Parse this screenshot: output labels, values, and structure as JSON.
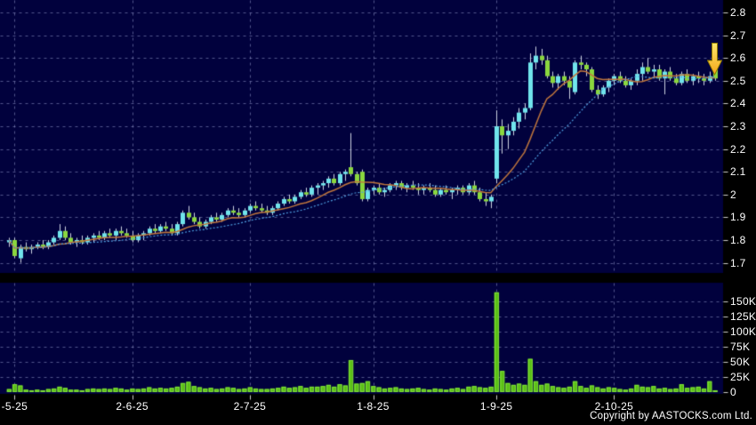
{
  "footer": {
    "copyright": "Copyright by AASTOCKS.com Ltd."
  },
  "chart_data": {
    "type": "candlestick",
    "panes": [
      "price",
      "volume"
    ],
    "grid": true,
    "legend": "none",
    "price_axis": {
      "side": "right",
      "ylim": [
        1.7,
        2.8
      ],
      "tick_labels": [
        "2.8",
        "2.7",
        "2.6",
        "2.5",
        "2.4",
        "2.3",
        "2.2",
        "2.1",
        "2",
        "1.9",
        "1.8",
        "1.7"
      ]
    },
    "volume_axis": {
      "side": "right",
      "ylim_k": [
        0,
        150
      ],
      "tick_labels": [
        "150K",
        "125K",
        "100K",
        "75K",
        "50K",
        "25K",
        "0"
      ]
    },
    "x_axis": {
      "ticks": [
        {
          "label": "-5-25",
          "bar": 1
        },
        {
          "label": "2-6-25",
          "bar": 22
        },
        {
          "label": "2-7-25",
          "bar": 43
        },
        {
          "label": "1-8-25",
          "bar": 65
        },
        {
          "label": "1-9-25",
          "bar": 87
        },
        {
          "label": "2-10-25",
          "bar": 108
        }
      ]
    },
    "moving_averages": [
      {
        "period": 10,
        "color": "#c0763c",
        "style": "solid"
      },
      {
        "period": 20,
        "color": "#4f9fe0",
        "style": "dotted"
      }
    ],
    "colors": {
      "plot_bg": "#01013d",
      "outer_bg": "#000000",
      "gridline": "rgba(150,155,205,0.55)",
      "axis_text": "#ffffff",
      "tick_mark": "#cccccc",
      "up_candle": "#70e4ec",
      "down_candle": "#8ad73e",
      "wick": "#ccd2e0",
      "volume_fill": "#5abf16",
      "volume_stroke": "#82e43a"
    },
    "annotation_arrow": {
      "shape": "down-arrow",
      "bar": 126,
      "fill_top": "#ffe76a",
      "fill_bottom": "#f2a71b",
      "stroke": "#8f7a00"
    },
    "series": {
      "ohlcv_legend": [
        "open",
        "high",
        "low",
        "close",
        "volume_k"
      ],
      "ohlcv": [
        [
          1.79,
          1.81,
          1.77,
          1.8,
          5
        ],
        [
          1.8,
          1.81,
          1.72,
          1.73,
          13
        ],
        [
          1.72,
          1.78,
          1.7,
          1.77,
          11
        ],
        [
          1.77,
          1.79,
          1.75,
          1.76,
          4
        ],
        [
          1.76,
          1.78,
          1.74,
          1.77,
          3
        ],
        [
          1.77,
          1.79,
          1.76,
          1.78,
          4
        ],
        [
          1.78,
          1.8,
          1.76,
          1.77,
          3
        ],
        [
          1.77,
          1.8,
          1.76,
          1.79,
          5
        ],
        [
          1.79,
          1.82,
          1.78,
          1.81,
          6
        ],
        [
          1.81,
          1.87,
          1.8,
          1.84,
          9
        ],
        [
          1.84,
          1.86,
          1.8,
          1.81,
          7
        ],
        [
          1.81,
          1.83,
          1.78,
          1.79,
          4
        ],
        [
          1.79,
          1.81,
          1.77,
          1.8,
          4
        ],
        [
          1.8,
          1.82,
          1.78,
          1.79,
          3
        ],
        [
          1.79,
          1.82,
          1.78,
          1.81,
          5
        ],
        [
          1.81,
          1.83,
          1.79,
          1.82,
          6
        ],
        [
          1.82,
          1.84,
          1.8,
          1.81,
          5
        ],
        [
          1.81,
          1.84,
          1.8,
          1.83,
          6
        ],
        [
          1.83,
          1.85,
          1.81,
          1.82,
          5
        ],
        [
          1.82,
          1.85,
          1.8,
          1.84,
          7
        ],
        [
          1.84,
          1.86,
          1.82,
          1.83,
          6
        ],
        [
          1.83,
          1.85,
          1.81,
          1.82,
          4
        ],
        [
          1.82,
          1.84,
          1.79,
          1.8,
          6
        ],
        [
          1.8,
          1.83,
          1.79,
          1.82,
          5
        ],
        [
          1.82,
          1.84,
          1.8,
          1.83,
          6
        ],
        [
          1.83,
          1.86,
          1.82,
          1.85,
          8
        ],
        [
          1.85,
          1.87,
          1.83,
          1.84,
          6
        ],
        [
          1.84,
          1.87,
          1.83,
          1.86,
          7
        ],
        [
          1.86,
          1.88,
          1.84,
          1.85,
          6
        ],
        [
          1.85,
          1.87,
          1.82,
          1.83,
          7
        ],
        [
          1.83,
          1.88,
          1.82,
          1.87,
          9
        ],
        [
          1.87,
          1.93,
          1.86,
          1.92,
          15
        ],
        [
          1.92,
          1.95,
          1.89,
          1.9,
          17
        ],
        [
          1.9,
          1.92,
          1.87,
          1.88,
          10
        ],
        [
          1.88,
          1.9,
          1.85,
          1.86,
          8
        ],
        [
          1.86,
          1.89,
          1.85,
          1.88,
          6
        ],
        [
          1.88,
          1.91,
          1.87,
          1.9,
          7
        ],
        [
          1.9,
          1.92,
          1.88,
          1.89,
          5
        ],
        [
          1.89,
          1.92,
          1.88,
          1.91,
          6
        ],
        [
          1.91,
          1.94,
          1.9,
          1.93,
          8
        ],
        [
          1.93,
          1.95,
          1.91,
          1.92,
          7
        ],
        [
          1.92,
          1.94,
          1.9,
          1.91,
          5
        ],
        [
          1.91,
          1.94,
          1.9,
          1.93,
          6
        ],
        [
          1.93,
          1.96,
          1.92,
          1.95,
          8
        ],
        [
          1.95,
          1.97,
          1.93,
          1.94,
          6
        ],
        [
          1.94,
          1.96,
          1.92,
          1.93,
          5
        ],
        [
          1.93,
          1.95,
          1.91,
          1.92,
          5
        ],
        [
          1.92,
          1.95,
          1.91,
          1.94,
          6
        ],
        [
          1.94,
          1.97,
          1.93,
          1.96,
          7
        ],
        [
          1.96,
          1.99,
          1.95,
          1.98,
          9
        ],
        [
          1.98,
          2.0,
          1.96,
          1.97,
          7
        ],
        [
          1.97,
          2.0,
          1.96,
          1.99,
          8
        ],
        [
          1.99,
          2.02,
          1.98,
          2.01,
          10
        ],
        [
          2.01,
          2.03,
          1.99,
          2.0,
          7
        ],
        [
          2.0,
          2.04,
          1.99,
          2.03,
          9
        ],
        [
          2.03,
          2.05,
          2.0,
          2.04,
          9
        ],
        [
          2.04,
          2.06,
          2.02,
          2.05,
          10
        ],
        [
          2.05,
          2.08,
          2.03,
          2.07,
          12
        ],
        [
          2.07,
          2.09,
          2.04,
          2.05,
          9
        ],
        [
          2.05,
          2.1,
          2.04,
          2.09,
          13
        ],
        [
          2.09,
          2.11,
          2.06,
          2.1,
          11
        ],
        [
          2.12,
          2.27,
          2.08,
          2.09,
          53
        ],
        [
          2.09,
          2.1,
          2.04,
          2.05,
          14
        ],
        [
          2.1,
          2.11,
          1.97,
          1.98,
          15
        ],
        [
          1.98,
          2.03,
          1.97,
          2.02,
          18
        ],
        [
          2.02,
          2.04,
          2.0,
          2.03,
          10
        ],
        [
          2.03,
          2.05,
          2.0,
          2.01,
          8
        ],
        [
          2.01,
          2.03,
          1.99,
          2.02,
          6
        ],
        [
          2.02,
          2.05,
          2.01,
          2.04,
          7
        ],
        [
          2.04,
          2.06,
          2.02,
          2.05,
          8
        ],
        [
          2.05,
          2.06,
          2.02,
          2.03,
          6
        ],
        [
          2.03,
          2.05,
          2.01,
          2.04,
          5
        ],
        [
          2.04,
          2.06,
          2.02,
          2.03,
          6
        ],
        [
          2.03,
          2.05,
          2.0,
          2.02,
          7
        ],
        [
          2.02,
          2.04,
          2.0,
          2.03,
          5
        ],
        [
          2.03,
          2.05,
          2.01,
          2.02,
          4
        ],
        [
          2.02,
          2.04,
          1.99,
          2.0,
          6
        ],
        [
          2.0,
          2.03,
          1.99,
          2.02,
          5
        ],
        [
          2.02,
          2.04,
          2.0,
          2.01,
          4
        ],
        [
          2.01,
          2.03,
          1.98,
          2.02,
          6
        ],
        [
          2.02,
          2.04,
          2.0,
          2.03,
          7
        ],
        [
          2.03,
          2.04,
          2.0,
          2.01,
          5
        ],
        [
          2.01,
          2.05,
          2.0,
          2.04,
          9
        ],
        [
          2.04,
          2.06,
          2.0,
          2.01,
          10
        ],
        [
          2.01,
          2.03,
          1.97,
          1.98,
          8
        ],
        [
          1.98,
          2.01,
          1.95,
          1.97,
          7
        ],
        [
          1.97,
          2.0,
          1.94,
          1.99,
          9
        ],
        [
          2.07,
          2.37,
          2.05,
          2.3,
          165
        ],
        [
          2.3,
          2.33,
          2.18,
          2.26,
          35
        ],
        [
          2.26,
          2.31,
          2.2,
          2.28,
          15
        ],
        [
          2.28,
          2.34,
          2.26,
          2.32,
          12
        ],
        [
          2.32,
          2.38,
          2.29,
          2.36,
          14
        ],
        [
          2.36,
          2.4,
          2.33,
          2.38,
          12
        ],
        [
          2.38,
          2.62,
          2.37,
          2.58,
          55
        ],
        [
          2.58,
          2.65,
          2.55,
          2.61,
          18
        ],
        [
          2.61,
          2.64,
          2.57,
          2.59,
          12
        ],
        [
          2.59,
          2.61,
          2.51,
          2.52,
          14
        ],
        [
          2.52,
          2.54,
          2.47,
          2.49,
          10
        ],
        [
          2.49,
          2.53,
          2.46,
          2.52,
          8
        ],
        [
          2.52,
          2.54,
          2.48,
          2.5,
          7
        ],
        [
          2.5,
          2.52,
          2.42,
          2.47,
          9
        ],
        [
          2.45,
          2.59,
          2.44,
          2.58,
          18
        ],
        [
          2.58,
          2.61,
          2.55,
          2.57,
          10
        ],
        [
          2.57,
          2.58,
          2.52,
          2.55,
          7
        ],
        [
          2.55,
          2.56,
          2.45,
          2.46,
          11
        ],
        [
          2.46,
          2.48,
          2.42,
          2.44,
          8
        ],
        [
          2.44,
          2.48,
          2.43,
          2.47,
          6
        ],
        [
          2.47,
          2.51,
          2.45,
          2.5,
          8
        ],
        [
          2.5,
          2.53,
          2.48,
          2.52,
          7
        ],
        [
          2.52,
          2.54,
          2.49,
          2.5,
          5
        ],
        [
          2.5,
          2.52,
          2.47,
          2.48,
          4
        ],
        [
          2.48,
          2.51,
          2.46,
          2.5,
          6
        ],
        [
          2.5,
          2.55,
          2.48,
          2.53,
          12
        ],
        [
          2.53,
          2.58,
          2.5,
          2.56,
          9
        ],
        [
          2.56,
          2.6,
          2.53,
          2.54,
          8
        ],
        [
          2.54,
          2.57,
          2.51,
          2.55,
          10
        ],
        [
          2.55,
          2.57,
          2.5,
          2.51,
          6
        ],
        [
          2.51,
          2.55,
          2.44,
          2.54,
          7
        ],
        [
          2.54,
          2.56,
          2.5,
          2.51,
          5
        ],
        [
          2.51,
          2.53,
          2.48,
          2.49,
          6
        ],
        [
          2.49,
          2.54,
          2.48,
          2.53,
          13
        ],
        [
          2.53,
          2.55,
          2.49,
          2.5,
          7
        ],
        [
          2.5,
          2.53,
          2.48,
          2.52,
          8
        ],
        [
          2.52,
          2.54,
          2.49,
          2.51,
          9
        ],
        [
          2.51,
          2.53,
          2.48,
          2.5,
          6
        ],
        [
          2.5,
          2.54,
          2.49,
          2.52,
          18
        ],
        [
          2.55,
          2.57,
          2.5,
          2.51,
          3
        ]
      ]
    }
  }
}
